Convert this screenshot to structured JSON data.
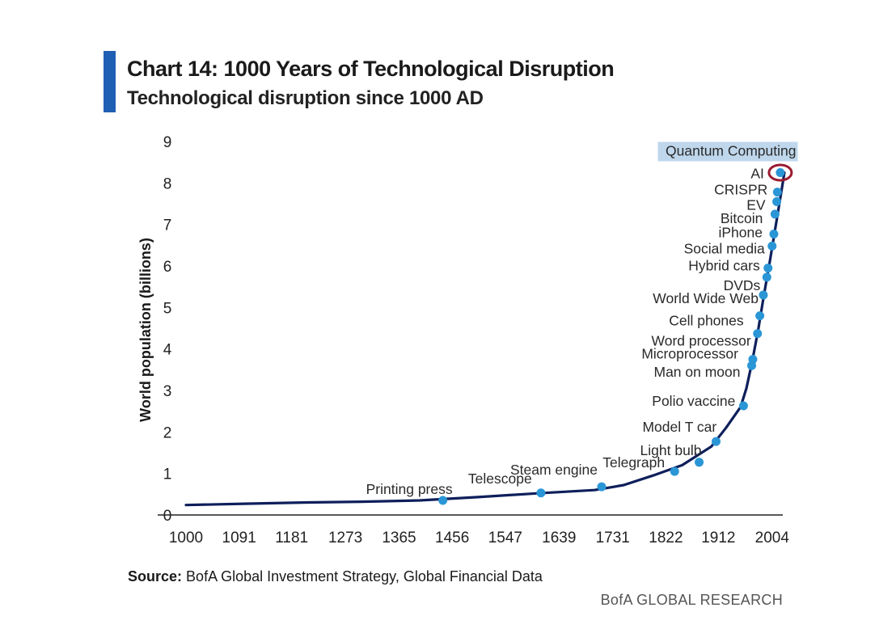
{
  "header": {
    "title": "Chart 14: 1000 Years of Technological Disruption",
    "subtitle": "Technological disruption since 1000 AD"
  },
  "footer": {
    "source_label": "Source:",
    "source_text": "BofA Global Investment Strategy, Global Financial Data",
    "brand": "BofA GLOBAL RESEARCH"
  },
  "colors": {
    "accent": "#1f5fb4",
    "line": "#0e1f5b",
    "point": "#2b96d6",
    "highlight_box": "#bfd7ec",
    "highlight_ring": "#9b1b30"
  },
  "chart_data": {
    "type": "line",
    "title": "Chart 14: 1000 Years of Technological Disruption",
    "subtitle": "Technological disruption since 1000 AD",
    "xlabel": "",
    "ylabel": "World population (billions)",
    "xlim": [
      1000,
      2050
    ],
    "ylim": [
      0,
      9
    ],
    "x_ticks": [
      1000,
      1091,
      1181,
      1273,
      1365,
      1456,
      1547,
      1639,
      1731,
      1822,
      1912,
      2004
    ],
    "y_ticks": [
      0,
      1,
      2,
      3,
      4,
      5,
      6,
      7,
      8,
      9
    ],
    "grid": false,
    "population_curve": [
      {
        "x": 1000,
        "y": 0.24
      },
      {
        "x": 1100,
        "y": 0.27
      },
      {
        "x": 1200,
        "y": 0.3
      },
      {
        "x": 1300,
        "y": 0.32
      },
      {
        "x": 1400,
        "y": 0.35
      },
      {
        "x": 1500,
        "y": 0.43
      },
      {
        "x": 1600,
        "y": 0.52
      },
      {
        "x": 1700,
        "y": 0.6
      },
      {
        "x": 1750,
        "y": 0.72
      },
      {
        "x": 1800,
        "y": 0.95
      },
      {
        "x": 1850,
        "y": 1.2
      },
      {
        "x": 1900,
        "y": 1.65
      },
      {
        "x": 1925,
        "y": 2.1
      },
      {
        "x": 1950,
        "y": 2.6
      },
      {
        "x": 1960,
        "y": 3.05
      },
      {
        "x": 1970,
        "y": 3.7
      },
      {
        "x": 1980,
        "y": 4.45
      },
      {
        "x": 1990,
        "y": 5.3
      },
      {
        "x": 2000,
        "y": 6.1
      },
      {
        "x": 2010,
        "y": 6.95
      },
      {
        "x": 2020,
        "y": 7.8
      },
      {
        "x": 2025,
        "y": 8.25
      }
    ],
    "events": [
      {
        "label": "Printing press",
        "x": 1440,
        "y": 0.35
      },
      {
        "label": "Telescope",
        "x": 1608,
        "y": 0.53
      },
      {
        "label": "Steam engine",
        "x": 1712,
        "y": 0.68
      },
      {
        "label": "Telegraph",
        "x": 1837,
        "y": 1.05
      },
      {
        "label": "Light bulb",
        "x": 1879,
        "y": 1.27
      },
      {
        "label": "Model T car",
        "x": 1908,
        "y": 1.77
      },
      {
        "label": "Polio vaccine",
        "x": 1955,
        "y": 2.63
      },
      {
        "label": "Man on moon",
        "x": 1969,
        "y": 3.6
      },
      {
        "label": "Microprocessor",
        "x": 1971,
        "y": 3.75
      },
      {
        "label": "Word processor",
        "x": 1979,
        "y": 4.37
      },
      {
        "label": "Cell phones",
        "x": 1983,
        "y": 4.8
      },
      {
        "label": "World Wide Web",
        "x": 1989,
        "y": 5.3
      },
      {
        "label": "DVDs",
        "x": 1995,
        "y": 5.73
      },
      {
        "label": "Hybrid cars",
        "x": 1997,
        "y": 5.95
      },
      {
        "label": "Social media",
        "x": 2004,
        "y": 6.48
      },
      {
        "label": "iPhone",
        "x": 2007,
        "y": 6.77
      },
      {
        "label": "Bitcoin",
        "x": 2009,
        "y": 7.25
      },
      {
        "label": "EV",
        "x": 2012,
        "y": 7.55
      },
      {
        "label": "CRISPR",
        "x": 2013,
        "y": 7.78
      },
      {
        "label": "AI",
        "x": 2018,
        "y": 8.25,
        "highlight": "ring"
      },
      {
        "label": "Quantum Computing",
        "x": 2023,
        "y": 8.25,
        "highlight": "box"
      }
    ]
  }
}
